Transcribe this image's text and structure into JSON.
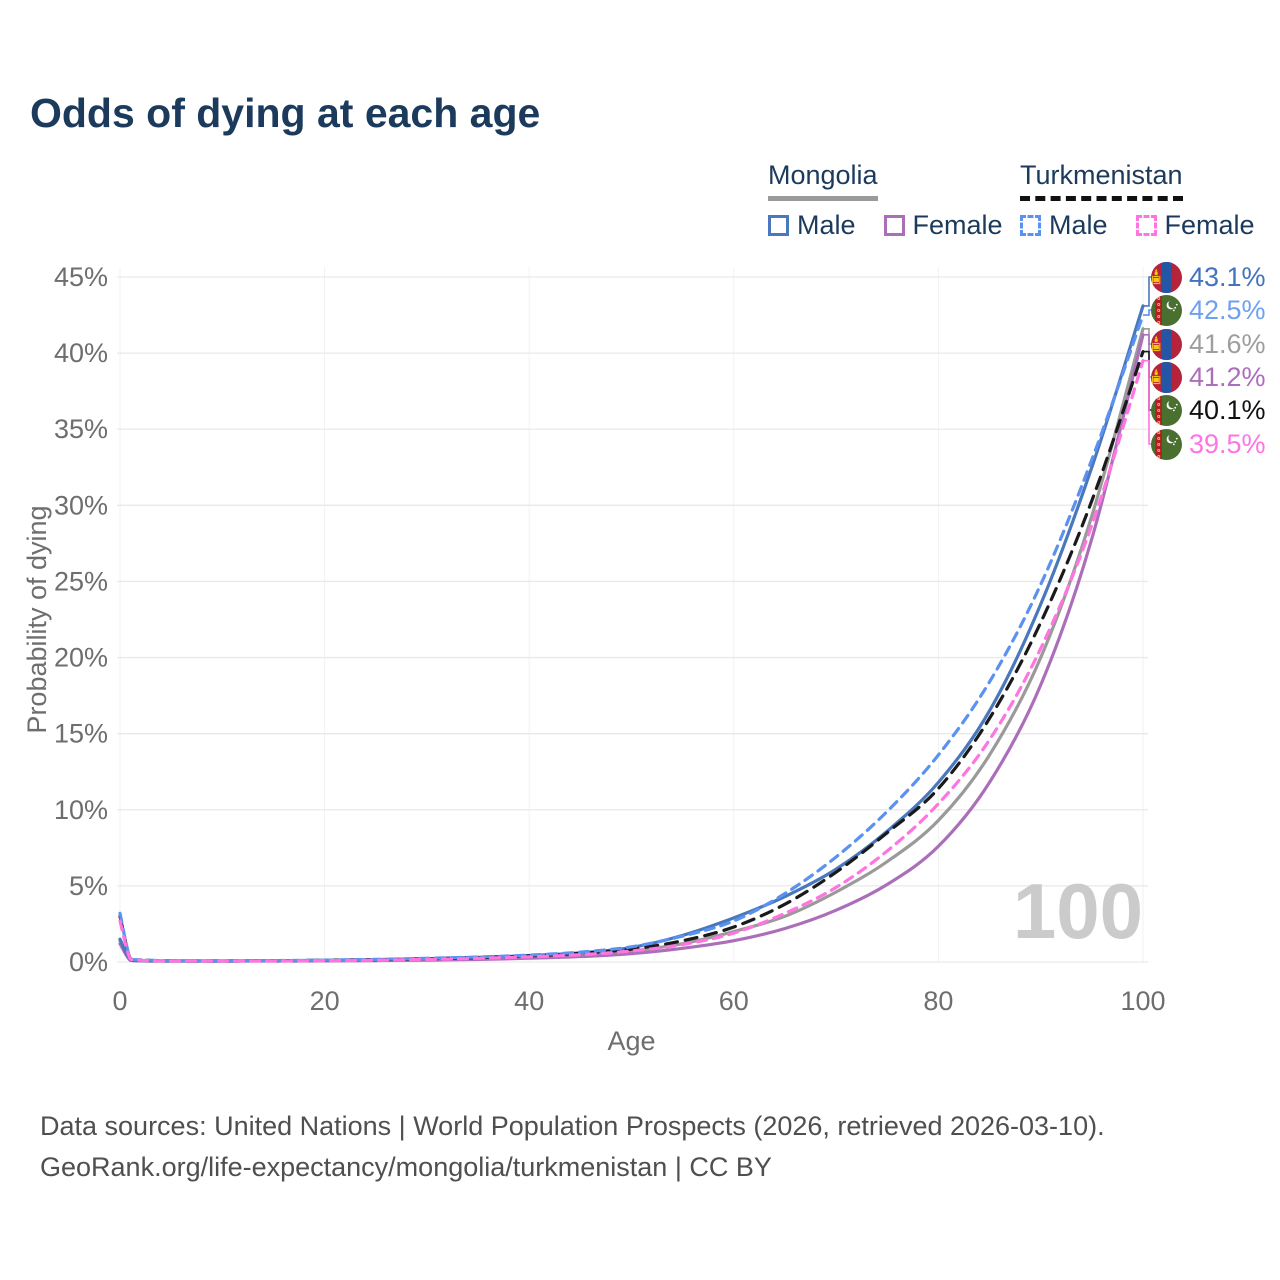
{
  "title": "Odds of dying at each age",
  "watermark": "100",
  "legend": {
    "groups": [
      {
        "label": "Mongolia",
        "items": [
          {
            "label": "Male"
          },
          {
            "label": "Female"
          }
        ]
      },
      {
        "label": "Turkmenistan",
        "items": [
          {
            "label": "Male"
          },
          {
            "label": "Female"
          }
        ]
      }
    ]
  },
  "end_labels": [
    {
      "value": "43.1%",
      "pct": 43.1,
      "country": "mongolia",
      "color": "#4273bd",
      "series": "Mongolia Male"
    },
    {
      "value": "42.5%",
      "pct": 42.5,
      "country": "turkmenistan",
      "color": "#6f9ff0",
      "series": "Turkmenistan Male"
    },
    {
      "value": "41.6%",
      "pct": 41.6,
      "country": "mongolia",
      "color": "#9e9e9e",
      "series": "Mongolia Both sexes"
    },
    {
      "value": "41.2%",
      "pct": 41.2,
      "country": "mongolia",
      "color": "#ad6dbd",
      "series": "Mongolia Female"
    },
    {
      "value": "40.1%",
      "pct": 40.1,
      "country": "turkmenistan",
      "color": "#111111",
      "series": "Turkmenistan Both sexes"
    },
    {
      "value": "39.5%",
      "pct": 39.5,
      "country": "turkmenistan",
      "color": "#ff74e4",
      "series": "Turkmenistan Female"
    }
  ],
  "footer": {
    "line1": "Data sources: United Nations | World Population Prospects (2026, retrieved 2026-03-10).",
    "line2": "GeoRank.org/life-expectancy/mongolia/turkmenistan | CC BY"
  },
  "chart_data": {
    "type": "line",
    "title": "Odds of dying at each age",
    "xlabel": "Age",
    "ylabel": "Probability of dying",
    "xlim": [
      0,
      100
    ],
    "ylim": [
      0,
      45
    ],
    "grid": "horizontal-light",
    "legend_position": "top-right",
    "xticks": [
      {
        "v": 0,
        "label": "0"
      },
      {
        "v": 20,
        "label": "20"
      },
      {
        "v": 40,
        "label": "40"
      },
      {
        "v": 60,
        "label": "60"
      },
      {
        "v": 80,
        "label": "80"
      },
      {
        "v": 100,
        "label": "100"
      }
    ],
    "yticks": [
      {
        "v": 0,
        "label": "0%"
      },
      {
        "v": 5,
        "label": "5%"
      },
      {
        "v": 10,
        "label": "10%"
      },
      {
        "v": 15,
        "label": "15%"
      },
      {
        "v": 20,
        "label": "20%"
      },
      {
        "v": 25,
        "label": "25%"
      },
      {
        "v": 30,
        "label": "30%"
      },
      {
        "v": 35,
        "label": "35%"
      },
      {
        "v": 40,
        "label": "40%"
      },
      {
        "v": 45,
        "label": "45%"
      }
    ],
    "x": [
      0,
      1,
      2,
      3,
      5,
      10,
      15,
      20,
      25,
      30,
      35,
      40,
      45,
      50,
      55,
      60,
      65,
      70,
      75,
      80,
      85,
      90,
      95,
      100
    ],
    "series": [
      {
        "name": "Mongolia Both sexes",
        "country": "Mongolia",
        "sex": "both",
        "style": "solid",
        "color": "#9a9a9a",
        "values": [
          1.4,
          0.13,
          0.09,
          0.07,
          0.05,
          0.04,
          0.07,
          0.1,
          0.13,
          0.18,
          0.25,
          0.34,
          0.48,
          0.72,
          1.2,
          2.0,
          3.0,
          4.6,
          6.6,
          9.3,
          13.6,
          20.0,
          29.3,
          41.6
        ],
        "end_value_label": "41.6%"
      },
      {
        "name": "Mongolia Female",
        "country": "Mongolia",
        "sex": "female",
        "style": "solid",
        "color": "#ab6fba",
        "values": [
          1.2,
          0.11,
          0.08,
          0.06,
          0.04,
          0.03,
          0.05,
          0.07,
          0.09,
          0.12,
          0.17,
          0.25,
          0.36,
          0.55,
          0.9,
          1.4,
          2.2,
          3.4,
          5.1,
          7.6,
          11.8,
          18.2,
          27.8,
          41.2
        ],
        "end_value_label": "41.2%"
      },
      {
        "name": "Mongolia Male",
        "country": "Mongolia",
        "sex": "male",
        "style": "solid",
        "color": "#4a78bc",
        "values": [
          1.5,
          0.15,
          0.1,
          0.08,
          0.06,
          0.05,
          0.08,
          0.12,
          0.16,
          0.22,
          0.3,
          0.42,
          0.6,
          0.95,
          1.75,
          2.9,
          4.3,
          6.1,
          8.6,
          11.8,
          16.5,
          23.5,
          32.5,
          43.1
        ],
        "end_value_label": "43.1%"
      },
      {
        "name": "Turkmenistan Both sexes",
        "country": "Turkmenistan",
        "sex": "both",
        "style": "dashed",
        "color": "#1a1a1a",
        "values": [
          3.0,
          0.22,
          0.13,
          0.1,
          0.07,
          0.05,
          0.08,
          0.11,
          0.15,
          0.21,
          0.29,
          0.4,
          0.57,
          0.85,
          1.4,
          2.3,
          3.8,
          5.9,
          8.5,
          11.4,
          16.0,
          22.3,
          30.3,
          40.1
        ],
        "end_value_label": "40.1%"
      },
      {
        "name": "Turkmenistan Male",
        "country": "Turkmenistan",
        "sex": "male",
        "style": "dashed",
        "color": "#5b91f0",
        "values": [
          3.2,
          0.25,
          0.15,
          0.11,
          0.08,
          0.06,
          0.09,
          0.12,
          0.17,
          0.24,
          0.33,
          0.45,
          0.65,
          1.0,
          1.7,
          2.7,
          4.5,
          6.9,
          9.9,
          13.6,
          18.4,
          24.8,
          33.0,
          42.5
        ],
        "end_value_label": "42.5%"
      },
      {
        "name": "Turkmenistan Female",
        "country": "Turkmenistan",
        "sex": "female",
        "style": "dashed",
        "color": "#ff74e0",
        "values": [
          2.7,
          0.2,
          0.12,
          0.09,
          0.06,
          0.04,
          0.06,
          0.09,
          0.12,
          0.17,
          0.24,
          0.34,
          0.48,
          0.72,
          1.15,
          1.9,
          3.2,
          4.9,
          7.3,
          10.4,
          14.6,
          20.6,
          28.7,
          39.5
        ],
        "end_value_label": "39.5%"
      }
    ]
  }
}
